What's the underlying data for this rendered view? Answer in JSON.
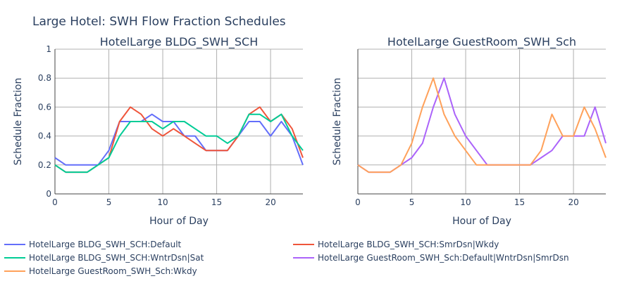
{
  "figure_title": "Large Hotel: SWH Flow Fraction Schedules",
  "colors": {
    "text": "#2a3f5f",
    "grid": "#b0b0b0",
    "axis": "#444444"
  },
  "chart_data": [
    {
      "type": "line",
      "title": "HotelLarge BLDG_SWH_SCH",
      "xlabel": "Hour of Day",
      "ylabel": "Schedule Fraction",
      "xlim": [
        0,
        23
      ],
      "ylim": [
        0,
        1
      ],
      "x_ticks": [
        0,
        5,
        10,
        15,
        20
      ],
      "y_ticks": [
        0,
        0.2,
        0.4,
        0.6,
        0.8,
        1
      ],
      "y_tick_labels": [
        "0",
        "0.2",
        "0.4",
        "0.6",
        "0.8",
        "1"
      ],
      "grid": true,
      "x": [
        0,
        1,
        2,
        3,
        4,
        5,
        6,
        7,
        8,
        9,
        10,
        11,
        12,
        13,
        14,
        15,
        16,
        17,
        18,
        19,
        20,
        21,
        22,
        23
      ],
      "series": [
        {
          "name": "HotelLarge BLDG_SWH_SCH:Default",
          "color": "#636efa",
          "values": [
            0.25,
            0.2,
            0.2,
            0.2,
            0.2,
            0.3,
            0.5,
            0.5,
            0.5,
            0.55,
            0.5,
            0.5,
            0.4,
            0.4,
            0.3,
            0.3,
            0.3,
            0.4,
            0.5,
            0.5,
            0.4,
            0.5,
            0.4,
            0.2
          ]
        },
        {
          "name": "HotelLarge BLDG_SWH_SCH:SmrDsn|Wkdy",
          "color": "#ef553b",
          "values": [
            0.2,
            0.15,
            0.15,
            0.15,
            0.2,
            0.25,
            0.5,
            0.6,
            0.55,
            0.45,
            0.4,
            0.45,
            0.4,
            0.35,
            0.3,
            0.3,
            0.3,
            0.4,
            0.55,
            0.6,
            0.5,
            0.55,
            0.45,
            0.25
          ]
        },
        {
          "name": "HotelLarge BLDG_SWH_SCH:WntrDsn|Sat",
          "color": "#00cc96",
          "values": [
            0.2,
            0.15,
            0.15,
            0.15,
            0.2,
            0.25,
            0.4,
            0.5,
            0.5,
            0.5,
            0.45,
            0.5,
            0.5,
            0.45,
            0.4,
            0.4,
            0.35,
            0.4,
            0.55,
            0.55,
            0.5,
            0.55,
            0.4,
            0.3
          ]
        }
      ]
    },
    {
      "type": "line",
      "title": "HotelLarge GuestRoom_SWH_Sch",
      "xlabel": "Hour of Day",
      "ylabel": "Schedule Fraction",
      "xlim": [
        0,
        23
      ],
      "ylim": [
        0,
        1
      ],
      "x_ticks": [
        0,
        5,
        10,
        15,
        20
      ],
      "y_ticks": [
        0,
        0.2,
        0.4,
        0.6,
        0.8,
        1
      ],
      "grid": true,
      "x": [
        0,
        1,
        2,
        3,
        4,
        5,
        6,
        7,
        8,
        9,
        10,
        11,
        12,
        13,
        14,
        15,
        16,
        17,
        18,
        19,
        20,
        21,
        22,
        23
      ],
      "series": [
        {
          "name": "HotelLarge GuestRoom_SWH_Sch:Default|WntrDsn|SmrDsn",
          "color": "#ab63fa",
          "values": [
            0.2,
            0.15,
            0.15,
            0.15,
            0.2,
            0.25,
            0.35,
            0.6,
            0.8,
            0.55,
            0.4,
            0.3,
            0.2,
            0.2,
            0.2,
            0.2,
            0.2,
            0.25,
            0.3,
            0.4,
            0.4,
            0.4,
            0.6,
            0.35
          ]
        },
        {
          "name": "HotelLarge GuestRoom_SWH_Sch:Wkdy",
          "color": "#ffa15a",
          "values": [
            0.2,
            0.15,
            0.15,
            0.15,
            0.2,
            0.35,
            0.6,
            0.8,
            0.55,
            0.4,
            0.3,
            0.2,
            0.2,
            0.2,
            0.2,
            0.2,
            0.2,
            0.3,
            0.55,
            0.4,
            0.4,
            0.6,
            0.45,
            0.25
          ]
        }
      ]
    }
  ],
  "legend": [
    {
      "name": "HotelLarge BLDG_SWH_SCH:Default",
      "color": "#636efa"
    },
    {
      "name": "HotelLarge BLDG_SWH_SCH:SmrDsn|Wkdy",
      "color": "#ef553b"
    },
    {
      "name": "HotelLarge BLDG_SWH_SCH:WntrDsn|Sat",
      "color": "#00cc96"
    },
    {
      "name": "HotelLarge GuestRoom_SWH_Sch:Default|WntrDsn|SmrDsn",
      "color": "#ab63fa"
    },
    {
      "name": "HotelLarge GuestRoom_SWH_Sch:Wkdy",
      "color": "#ffa15a"
    }
  ]
}
